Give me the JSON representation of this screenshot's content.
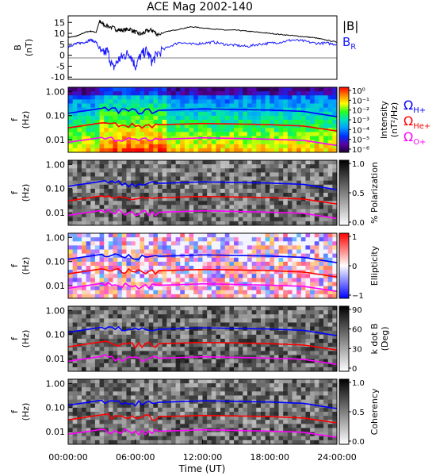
{
  "title": "ACE Mag 2002-140",
  "time_axis": {
    "label": "Time (UT)",
    "ticks": [
      "00:00:00",
      "06:00:00",
      "12:00:00",
      "18:00:00",
      "24:00:00"
    ],
    "range_hours": [
      0,
      24
    ]
  },
  "colors": {
    "B_total": "#000000",
    "B_R": "#1a1aff",
    "omega_H": "#0000ff",
    "omega_He": "#ff0000",
    "omega_O": "#ff00ff"
  },
  "legend": {
    "B_total": "|B|",
    "B_R": "B",
    "B_R_sub": "R",
    "omega_symbol": "Ω",
    "omega_H_sub": "H+",
    "omega_He_sub": "He+",
    "omega_O_sub": "O+"
  },
  "chart_data": [
    {
      "type": "line",
      "ylabel": "B",
      "yunit": "(nT)",
      "ylim": [
        -11,
        18
      ],
      "yticks": [
        15,
        10,
        5,
        0,
        -5,
        -10
      ],
      "series": [
        {
          "name": "|B|",
          "x_hours": [
            0,
            0.5,
            1,
            1.5,
            2,
            2.5,
            2.8,
            3.2,
            4,
            4.5,
            5,
            5.5,
            6,
            6.5,
            7,
            7.5,
            8,
            9,
            10,
            11,
            12,
            13,
            14,
            15,
            16,
            17,
            18,
            19,
            20,
            21,
            22,
            23,
            24
          ],
          "values": [
            8.2,
            8.5,
            9.2,
            10.5,
            11.0,
            10.5,
            15.5,
            14.0,
            12.5,
            11.5,
            11.5,
            12.0,
            10.5,
            9.5,
            11.0,
            11.5,
            9.5,
            11.0,
            12.0,
            13.0,
            12.5,
            12.0,
            11.5,
            11.5,
            11.0,
            10.5,
            10.0,
            9.5,
            9.0,
            8.5,
            8.0,
            7.0,
            6.0
          ]
        },
        {
          "name": "B",
          "x_hours": [
            0,
            0.5,
            1,
            1.5,
            2,
            2.5,
            3,
            3.5,
            4,
            4.5,
            5,
            5.5,
            6,
            6.5,
            7,
            7.5,
            8,
            9,
            10,
            11,
            12,
            13,
            14,
            15,
            16,
            17,
            18,
            19,
            20,
            21,
            22,
            23,
            24
          ],
          "values": [
            4.0,
            5.0,
            5.5,
            6.0,
            7.0,
            6.0,
            0.5,
            2.0,
            -6.0,
            -2.0,
            0.0,
            1.0,
            -5.0,
            0.0,
            2.0,
            -3.0,
            1.0,
            4.0,
            6.0,
            5.0,
            5.5,
            6.0,
            5.0,
            4.5,
            4.0,
            5.0,
            5.5,
            6.0,
            7.0,
            6.5,
            5.5,
            5.5,
            5.0
          ]
        }
      ]
    },
    {
      "type": "heatmap",
      "ylabel": "f",
      "yunit": "(Hz)",
      "yscale": "log",
      "ylim": [
        0.003,
        1.5
      ],
      "yticks": [
        "1.00",
        "0.10",
        "0.01"
      ],
      "colorbar": {
        "label": "Intensity",
        "unit": "(nT²/Hz)",
        "ticks": [
          "10⁰",
          "10⁻¹",
          "10⁻²",
          "10⁻³",
          "10⁻⁴",
          "10⁻⁵",
          "10⁻⁶"
        ],
        "scale": "rainbow"
      },
      "x_hours": [
        0,
        3,
        6,
        9,
        12,
        15,
        18,
        21,
        24
      ],
      "cyclotron_lines_hz": {
        "H+": [
          0.125,
          0.2,
          0.16,
          0.17,
          0.19,
          0.18,
          0.17,
          0.15,
          0.09
        ],
        "He+": [
          0.031,
          0.05,
          0.04,
          0.043,
          0.047,
          0.045,
          0.042,
          0.037,
          0.023
        ],
        "O+": [
          0.0078,
          0.0125,
          0.01,
          0.0107,
          0.012,
          0.0113,
          0.0105,
          0.0094,
          0.0058
        ]
      }
    },
    {
      "type": "heatmap",
      "ylabel": "f",
      "yunit": "(Hz)",
      "yscale": "log",
      "yticks": [
        "1.00",
        "0.10",
        "0.01"
      ],
      "colorbar": {
        "label": "% Polarization",
        "ticks": [
          "1.0",
          "0.5",
          "0.0"
        ],
        "scale": "grayscale"
      }
    },
    {
      "type": "heatmap",
      "ylabel": "f",
      "yunit": "(Hz)",
      "yscale": "log",
      "yticks": [
        "1.00",
        "0.10",
        "0.01"
      ],
      "colorbar": {
        "label": "Ellipticity",
        "ticks": [
          "1",
          "0",
          "−1"
        ],
        "scale": "blue-white-red"
      }
    },
    {
      "type": "heatmap",
      "ylabel": "f",
      "yunit": "(Hz)",
      "yscale": "log",
      "yticks": [
        "1.00",
        "0.10",
        "0.01"
      ],
      "colorbar": {
        "label": "k dot B",
        "unit": "(Deg)",
        "ticks": [
          "90",
          "60",
          "30",
          "0"
        ],
        "scale": "grayscale"
      }
    },
    {
      "type": "heatmap",
      "ylabel": "f",
      "yunit": "(Hz)",
      "yscale": "log",
      "yticks": [
        "1.00",
        "0.10",
        "0.01"
      ],
      "colorbar": {
        "label": "Coherency",
        "ticks": [
          "1.0",
          "0.5",
          "0.0"
        ],
        "scale": "grayscale"
      }
    }
  ]
}
